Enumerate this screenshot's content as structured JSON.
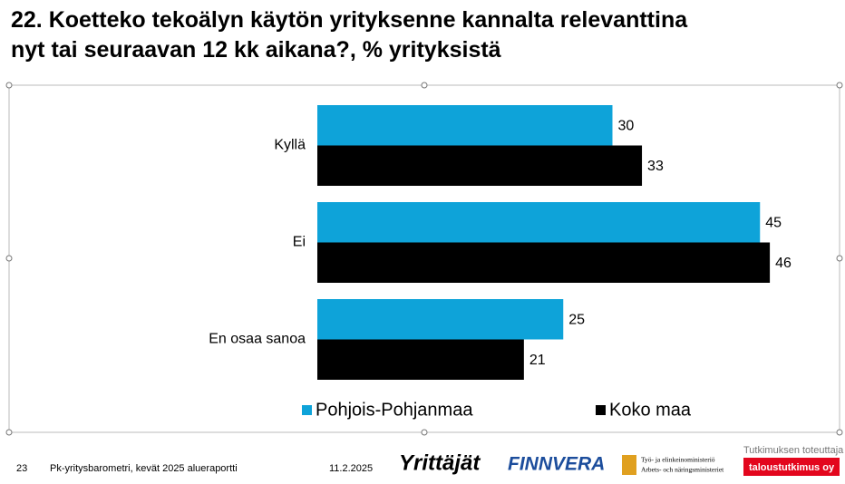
{
  "chart_data": {
    "type": "bar",
    "orientation": "horizontal",
    "title_lines": [
      "22. Koetteko tekoälyn käytön yrityksenne kannalta relevanttina",
      "nyt tai seuraavan 12 kk aikana?, % yrityksistä"
    ],
    "categories": [
      "Kyllä",
      "Ei",
      "En osaa sanoa"
    ],
    "series": [
      {
        "name": "Pohjois-Pohjanmaa",
        "color": "#0ea3d9",
        "values": [
          30,
          45,
          25
        ]
      },
      {
        "name": "Koko maa",
        "color": "#000000",
        "values": [
          33,
          46,
          21
        ]
      }
    ],
    "xlim": [
      0,
      50
    ]
  },
  "footer": {
    "page": "23",
    "report": "Pk-yritysbarometri, kevät 2025 alueraportti",
    "date": "11.2.2025",
    "logo_1": "Yrittäjät",
    "logo_2": "FINNVERA",
    "logo_3_line_1": "Työ- ja elinkeinoministeriö",
    "logo_3_line_2": "Arbets- och näringsministeriet",
    "producer_label": "Tutkimuksen toteuttaja",
    "producer": "taloustutkimus oy"
  }
}
